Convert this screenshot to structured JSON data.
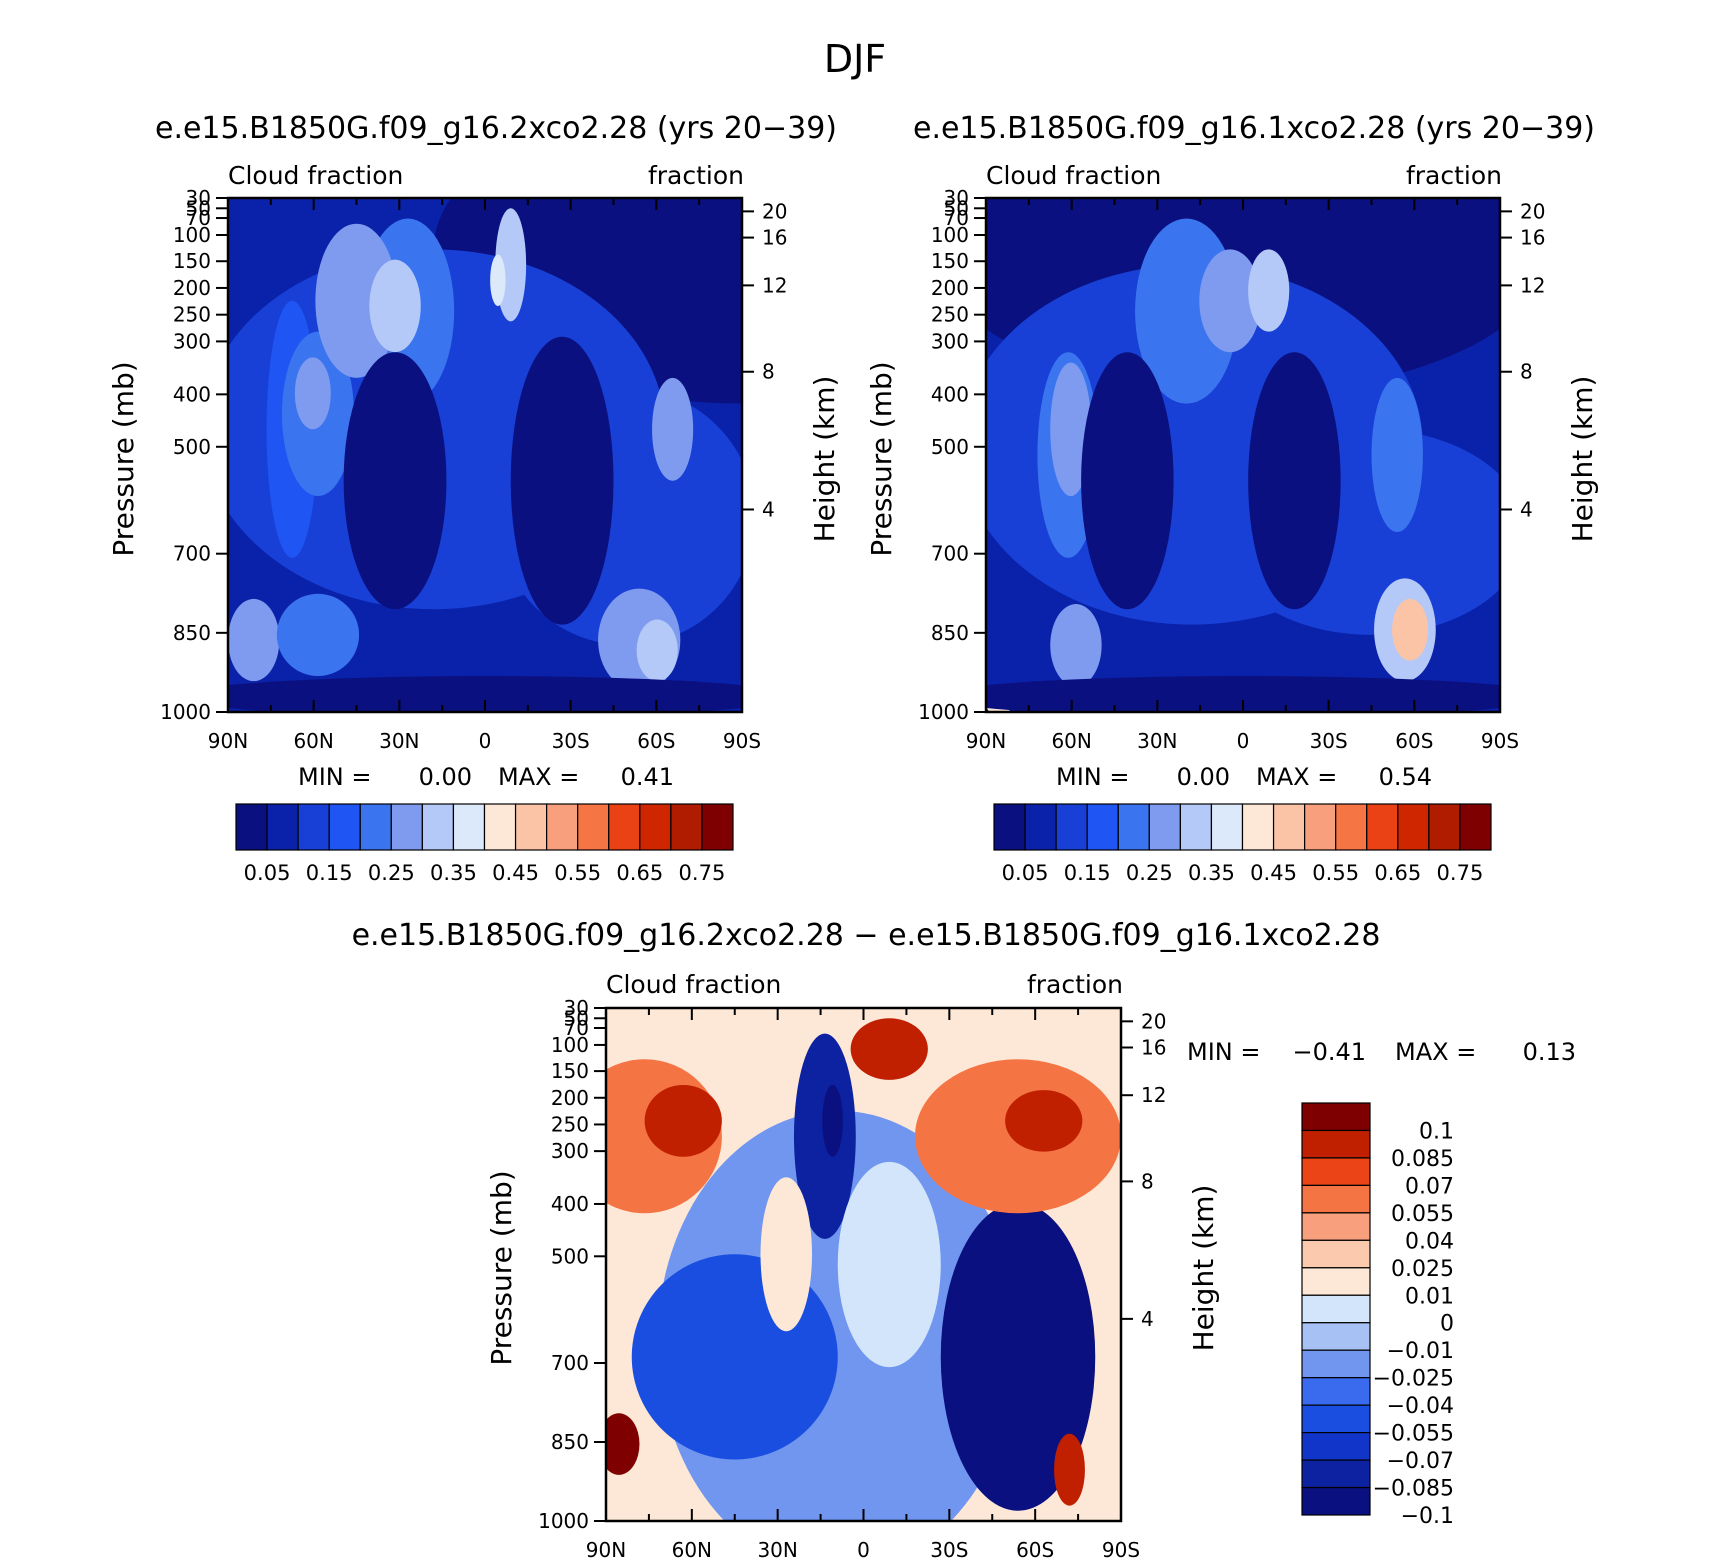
{
  "figure_title": "DJF",
  "colors": {
    "abs_palette": [
      "#0a1080",
      "#0a22aa",
      "#1840d6",
      "#1f55f2",
      "#3b74ef",
      "#7f9bef",
      "#b4c9f7",
      "#dbe9fb",
      "#fde7d6",
      "#fbc4a7",
      "#f8a07e",
      "#f57545",
      "#ea4214",
      "#d02600",
      "#b01c00",
      "#7e0000"
    ],
    "diff_palette": [
      "#0a1080",
      "#0c22a0",
      "#1035c8",
      "#1a4ee0",
      "#3a6bef",
      "#7096f0",
      "#a8c1f5",
      "#d3e5fb",
      "#fde7d6",
      "#fbc9ad",
      "#f8a07e",
      "#f57444",
      "#ea4417",
      "#c02000",
      "#7e0000"
    ]
  },
  "chart_data": [
    {
      "type": "heatmap",
      "panel": "top-left",
      "title": "e.e15.B1850G.f09_g16.2xco2.28 (yrs 20−39)",
      "left_label": "Cloud fraction",
      "right_label": "fraction",
      "ylabel": "Pressure (mb)",
      "y2label": "Height (km)",
      "x_ticks": [
        "90N",
        "60N",
        "30N",
        "0",
        "30S",
        "60S",
        "90S"
      ],
      "y_ticks": [
        "30",
        "50",
        "70",
        "100",
        "150",
        "200",
        "250",
        "300",
        "400",
        "500",
        "700",
        "850",
        "1000"
      ],
      "y2_ticks": [
        "20",
        "16",
        "12",
        "8",
        "4"
      ],
      "stats": {
        "min_label": "MIN =",
        "min": "0.00",
        "max_label": "MAX =",
        "max": "0.41"
      },
      "colorbar_labels": [
        "0.05",
        "0.15",
        "0.25",
        "0.35",
        "0.45",
        "0.55",
        "0.65",
        "0.75"
      ],
      "field": {
        "background_level": 1,
        "blobs": [
          {
            "lat": -1,
            "p": 0.1,
            "rx": 1.2,
            "ry": 0.3,
            "lvl": 0
          },
          {
            "lat": 0.2,
            "p": 0.45,
            "rx": 0.9,
            "ry": 0.35,
            "lvl": 2
          },
          {
            "lat": -0.55,
            "p": 0.62,
            "rx": 0.5,
            "ry": 0.25,
            "lvl": 2
          },
          {
            "lat": 0.75,
            "p": 0.45,
            "rx": 0.1,
            "ry": 0.25,
            "lvl": 3
          },
          {
            "lat": 0.65,
            "p": 0.42,
            "rx": 0.14,
            "ry": 0.16,
            "lvl": 4
          },
          {
            "lat": 0.67,
            "p": 0.38,
            "rx": 0.07,
            "ry": 0.07,
            "lvl": 5
          },
          {
            "lat": 0.3,
            "p": 0.22,
            "rx": 0.18,
            "ry": 0.18,
            "lvl": 4
          },
          {
            "lat": 0.5,
            "p": 0.2,
            "rx": 0.16,
            "ry": 0.15,
            "lvl": 5
          },
          {
            "lat": 0.35,
            "p": 0.21,
            "rx": 0.1,
            "ry": 0.09,
            "lvl": 6
          },
          {
            "lat": -0.1,
            "p": 0.13,
            "rx": 0.06,
            "ry": 0.11,
            "lvl": 6
          },
          {
            "lat": -0.05,
            "p": 0.16,
            "rx": 0.03,
            "ry": 0.05,
            "lvl": 7
          },
          {
            "lat": 0.35,
            "p": 0.55,
            "rx": 0.2,
            "ry": 0.25,
            "lvl": 0
          },
          {
            "lat": -0.3,
            "p": 0.55,
            "rx": 0.2,
            "ry": 0.28,
            "lvl": 0
          },
          {
            "lat": 0.9,
            "p": 0.86,
            "rx": 0.1,
            "ry": 0.08,
            "lvl": 5
          },
          {
            "lat": 0.65,
            "p": 0.85,
            "rx": 0.16,
            "ry": 0.08,
            "lvl": 4
          },
          {
            "lat": -0.6,
            "p": 0.86,
            "rx": 0.16,
            "ry": 0.1,
            "lvl": 5
          },
          {
            "lat": -0.67,
            "p": 0.88,
            "rx": 0.08,
            "ry": 0.06,
            "lvl": 6
          },
          {
            "lat": -0.73,
            "p": 0.45,
            "rx": 0.08,
            "ry": 0.1,
            "lvl": 5
          },
          {
            "lat": 0,
            "p": 0.97,
            "rx": 1.2,
            "ry": 0.04,
            "lvl": 0
          }
        ]
      }
    },
    {
      "type": "heatmap",
      "panel": "top-right",
      "title": "e.e15.B1850G.f09_g16.1xco2.28 (yrs 20−39)",
      "left_label": "Cloud fraction",
      "right_label": "fraction",
      "ylabel": "Pressure (mb)",
      "y2label": "Height (km)",
      "x_ticks": [
        "90N",
        "60N",
        "30N",
        "0",
        "30S",
        "60S",
        "90S"
      ],
      "y_ticks": [
        "30",
        "50",
        "70",
        "100",
        "150",
        "200",
        "250",
        "300",
        "400",
        "500",
        "700",
        "850",
        "1000"
      ],
      "y2_ticks": [
        "20",
        "16",
        "12",
        "8",
        "4"
      ],
      "stats": {
        "min_label": "MIN =",
        "min": "0.00",
        "max_label": "MAX =",
        "max": "0.54"
      },
      "colorbar_labels": [
        "0.05",
        "0.15",
        "0.25",
        "0.35",
        "0.45",
        "0.55",
        "0.65",
        "0.75"
      ],
      "field": {
        "background_level": 1,
        "blobs": [
          {
            "lat": 0,
            "p": 0.1,
            "rx": 1.2,
            "ry": 0.28,
            "lvl": 0
          },
          {
            "lat": 0.2,
            "p": 0.48,
            "rx": 0.9,
            "ry": 0.35,
            "lvl": 2
          },
          {
            "lat": -0.5,
            "p": 0.65,
            "rx": 0.6,
            "ry": 0.2,
            "lvl": 2
          },
          {
            "lat": 0.68,
            "p": 0.5,
            "rx": 0.12,
            "ry": 0.2,
            "lvl": 4
          },
          {
            "lat": 0.67,
            "p": 0.45,
            "rx": 0.08,
            "ry": 0.13,
            "lvl": 5
          },
          {
            "lat": 0.22,
            "p": 0.22,
            "rx": 0.2,
            "ry": 0.18,
            "lvl": 4
          },
          {
            "lat": 0.05,
            "p": 0.2,
            "rx": 0.12,
            "ry": 0.1,
            "lvl": 5
          },
          {
            "lat": -0.1,
            "p": 0.18,
            "rx": 0.08,
            "ry": 0.08,
            "lvl": 6
          },
          {
            "lat": 0.45,
            "p": 0.55,
            "rx": 0.18,
            "ry": 0.25,
            "lvl": 0
          },
          {
            "lat": -0.2,
            "p": 0.55,
            "rx": 0.18,
            "ry": 0.25,
            "lvl": 0
          },
          {
            "lat": 0.65,
            "p": 0.87,
            "rx": 0.1,
            "ry": 0.08,
            "lvl": 5
          },
          {
            "lat": -0.63,
            "p": 0.84,
            "rx": 0.12,
            "ry": 0.1,
            "lvl": 6
          },
          {
            "lat": -0.65,
            "p": 0.84,
            "rx": 0.07,
            "ry": 0.06,
            "lvl": 9
          },
          {
            "lat": -0.6,
            "p": 0.5,
            "rx": 0.1,
            "ry": 0.15,
            "lvl": 4
          },
          {
            "lat": 0.95,
            "p": 0.98,
            "rx": 0.05,
            "ry": 0.03,
            "lvl": 8
          },
          {
            "lat": 0,
            "p": 0.97,
            "rx": 1.2,
            "ry": 0.04,
            "lvl": 0
          }
        ]
      }
    },
    {
      "type": "heatmap",
      "panel": "bottom-difference",
      "title": "e.e15.B1850G.f09_g16.2xco2.28 − e.e15.B1850G.f09_g16.1xco2.28",
      "left_label": "Cloud fraction",
      "right_label": "fraction",
      "ylabel": "Pressure (mb)",
      "y2label": "Height (km)",
      "x_ticks": [
        "90N",
        "60N",
        "30N",
        "0",
        "30S",
        "60S",
        "90S"
      ],
      "y_ticks": [
        "30",
        "50",
        "70",
        "100",
        "150",
        "200",
        "250",
        "300",
        "400",
        "500",
        "700",
        "850",
        "1000"
      ],
      "y2_ticks": [
        "20",
        "16",
        "12",
        "8",
        "4"
      ],
      "stats": {
        "min_label": "MIN =",
        "min": "−0.41",
        "max_label": "MAX =",
        "max": "0.13"
      },
      "colorbar_labels": [
        "0.1",
        "0.085",
        "0.07",
        "0.055",
        "0.04",
        "0.025",
        "0.01",
        "0",
        "−0.01",
        "−0.025",
        "−0.04",
        "−0.055",
        "−0.07",
        "−0.085",
        "−0.1"
      ],
      "field": {
        "background_level": 8,
        "blobs": [
          {
            "lat": 0.1,
            "p": 0.65,
            "rx": 0.7,
            "ry": 0.45,
            "lvl": 5
          },
          {
            "lat": 0.5,
            "p": 0.68,
            "rx": 0.4,
            "ry": 0.2,
            "lvl": 3
          },
          {
            "lat": -0.6,
            "p": 0.68,
            "rx": 0.3,
            "ry": 0.3,
            "lvl": 0
          },
          {
            "lat": 0.85,
            "p": 0.25,
            "rx": 0.3,
            "ry": 0.15,
            "lvl": 11
          },
          {
            "lat": 0.7,
            "p": 0.22,
            "rx": 0.15,
            "ry": 0.07,
            "lvl": 13
          },
          {
            "lat": -0.6,
            "p": 0.25,
            "rx": 0.4,
            "ry": 0.15,
            "lvl": 11
          },
          {
            "lat": -0.7,
            "p": 0.22,
            "rx": 0.15,
            "ry": 0.06,
            "lvl": 13
          },
          {
            "lat": -0.1,
            "p": 0.08,
            "rx": 0.15,
            "ry": 0.06,
            "lvl": 13
          },
          {
            "lat": 0.15,
            "p": 0.25,
            "rx": 0.12,
            "ry": 0.2,
            "lvl": 1
          },
          {
            "lat": 0.12,
            "p": 0.22,
            "rx": 0.04,
            "ry": 0.07,
            "lvl": 0
          },
          {
            "lat": 0.95,
            "p": 0.85,
            "rx": 0.08,
            "ry": 0.06,
            "lvl": 14
          },
          {
            "lat": -0.8,
            "p": 0.9,
            "rx": 0.06,
            "ry": 0.07,
            "lvl": 13
          },
          {
            "lat": 0.3,
            "p": 0.48,
            "rx": 0.1,
            "ry": 0.15,
            "lvl": 8
          },
          {
            "lat": -0.1,
            "p": 0.5,
            "rx": 0.2,
            "ry": 0.2,
            "lvl": 7
          }
        ]
      }
    }
  ]
}
